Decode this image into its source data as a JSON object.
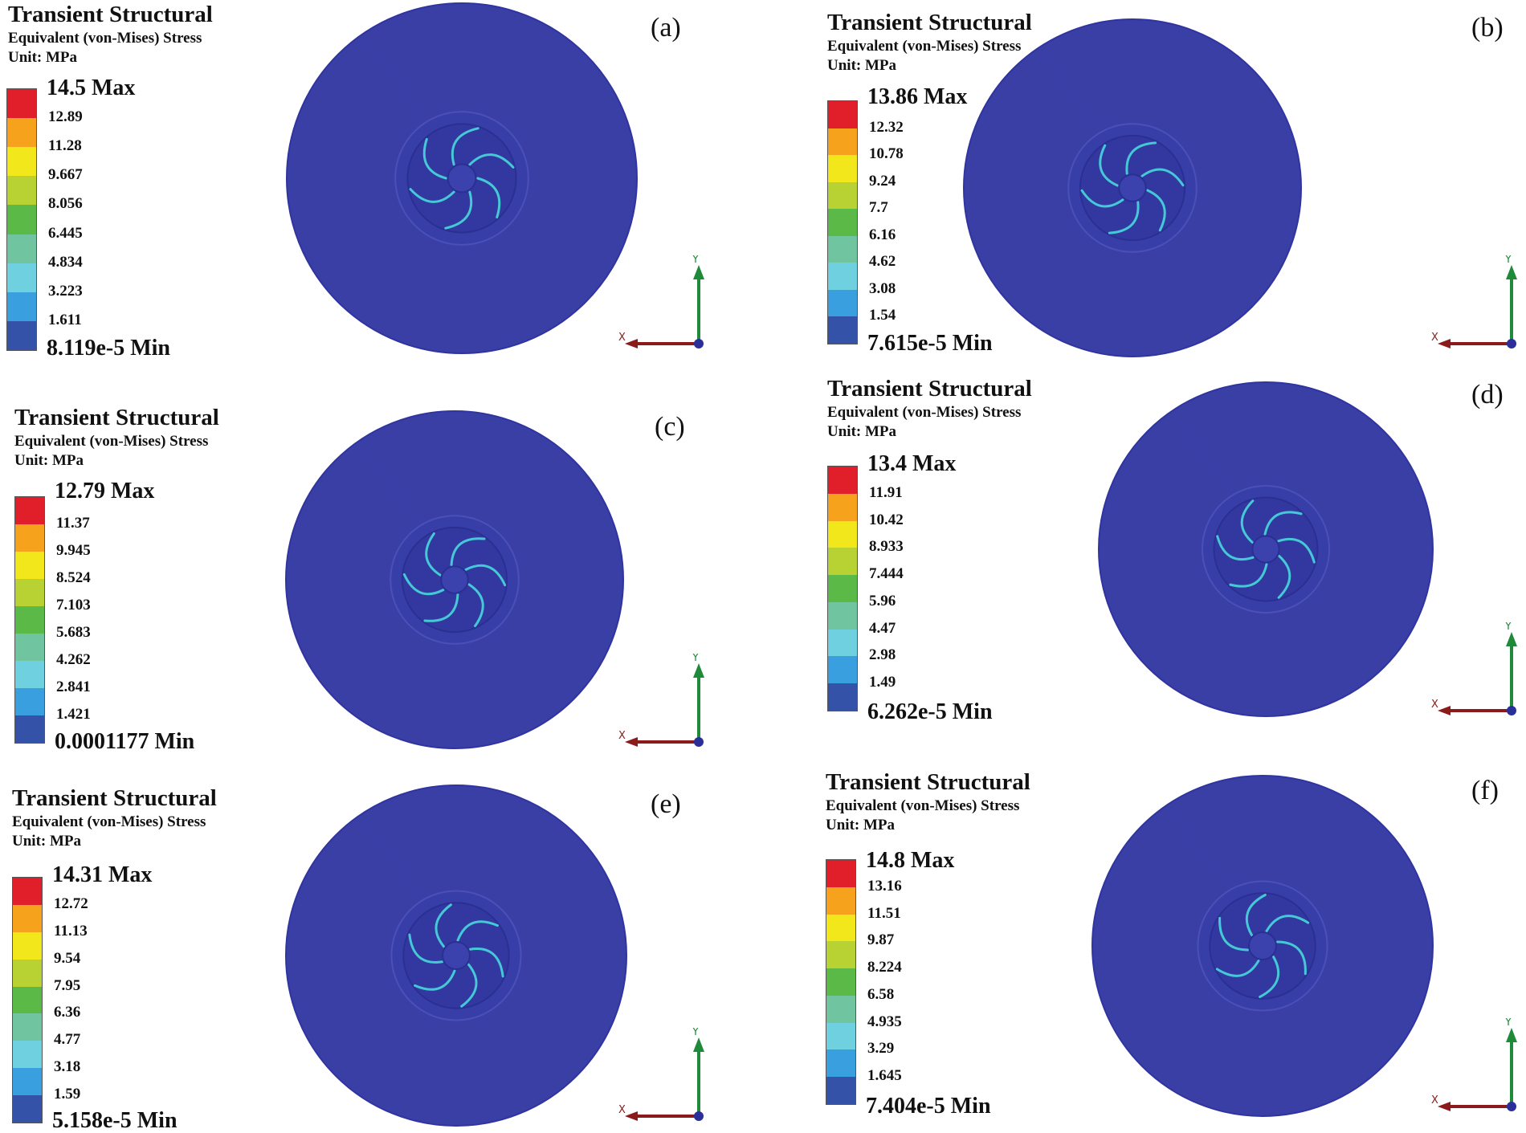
{
  "colors": {
    "legend": [
      "#e01f2a",
      "#f7a21d",
      "#f2e71b",
      "#b7d232",
      "#5bb947",
      "#70c4a0",
      "#6fd0df",
      "#3a9fde",
      "#3452a8"
    ],
    "disk": "#3a3fa6",
    "disk_rim": "#2f34a0",
    "hub": "#3b41ad",
    "blade_edge": "#45c9d6",
    "x_axis": "#8b1b1b",
    "y_axis": "#1f8a3a"
  },
  "axis_labels": {
    "x": "X",
    "y": "Y"
  },
  "panels": [
    {
      "id": "a",
      "title": "Transient Structural",
      "subtitle": "Equivalent (von-Mises) Stress",
      "unit": "Unit: MPa",
      "max_label": "14.5 Max",
      "min_label": "8.119e-5 Min",
      "ticks": [
        "12.89",
        "11.28",
        "9.667",
        "8.056",
        "6.445",
        "4.834",
        "3.223",
        "1.611"
      ],
      "panel_label": "(a)"
    },
    {
      "id": "b",
      "title": "Transient Structural",
      "subtitle": "Equivalent (von-Mises) Stress",
      "unit": "Unit: MPa",
      "max_label": "13.86 Max",
      "min_label": "7.615e-5 Min",
      "ticks": [
        "12.32",
        "10.78",
        "9.24",
        "7.7",
        "6.16",
        "4.62",
        "3.08",
        "1.54"
      ],
      "panel_label": "(b)"
    },
    {
      "id": "c",
      "title": "Transient Structural",
      "subtitle": "Equivalent (von-Mises) Stress",
      "unit": "Unit: MPa",
      "max_label": "12.79 Max",
      "min_label": "0.0001177 Min",
      "ticks": [
        "11.37",
        "9.945",
        "8.524",
        "7.103",
        "5.683",
        "4.262",
        "2.841",
        "1.421"
      ],
      "panel_label": "(c)"
    },
    {
      "id": "d",
      "title": "Transient Structural",
      "subtitle": "Equivalent (von-Mises) Stress",
      "unit": "Unit: MPa",
      "max_label": "13.4 Max",
      "min_label": "6.262e-5 Min",
      "ticks": [
        "11.91",
        "10.42",
        "8.933",
        "7.444",
        "5.96",
        "4.47",
        "2.98",
        "1.49"
      ],
      "panel_label": "(d)"
    },
    {
      "id": "e",
      "title": "Transient Structural",
      "subtitle": "Equivalent (von-Mises) Stress",
      "unit": "Unit: MPa",
      "max_label": "14.31 Max",
      "min_label": "5.158e-5 Min",
      "ticks": [
        "12.72",
        "11.13",
        "9.54",
        "7.95",
        "6.36",
        "4.77",
        "3.18",
        "1.59"
      ],
      "panel_label": "(e)"
    },
    {
      "id": "f",
      "title": "Transient Structural",
      "subtitle": "Equivalent (von-Mises) Stress",
      "unit": "Unit: MPa",
      "max_label": "14.8 Max",
      "min_label": "7.404e-5 Min",
      "ticks": [
        "13.16",
        "11.51",
        "9.87",
        "8.224",
        "6.58",
        "4.935",
        "3.29",
        "1.645"
      ],
      "panel_label": "(f)"
    }
  ]
}
